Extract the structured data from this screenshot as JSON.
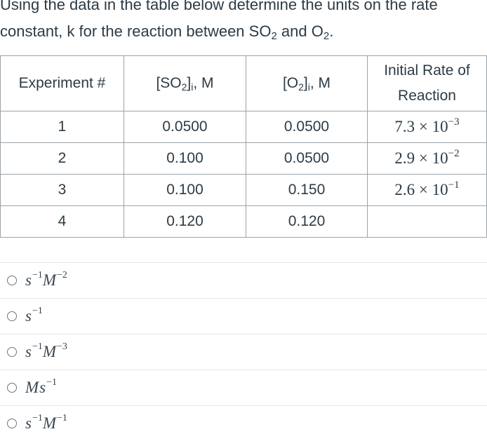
{
  "question": {
    "line1": "Using the data in the table below determine the units on the rate",
    "line2_pre": "constant, k for the reaction between SO",
    "line2_sub1": "2",
    "line2_mid": " and O",
    "line2_sub2": "2",
    "line2_end": "."
  },
  "table": {
    "headers": {
      "experiment": "Experiment #",
      "so2_pre": "[SO",
      "so2_sub": "2",
      "so2_post": "]",
      "so2_i": "i",
      "so2_unit": ", M",
      "o2_pre": "[O",
      "o2_sub": "2",
      "o2_post": "]",
      "o2_i": "i",
      "o2_unit": ", M",
      "rate_line1": "Initial Rate of",
      "rate_line2": "Reaction"
    },
    "rows": [
      {
        "exp": "1",
        "so2": "0.0500",
        "o2": "0.0500",
        "rate_mant": "7.3 × 10",
        "rate_exp": "−3"
      },
      {
        "exp": "2",
        "so2": "0.100",
        "o2": "0.0500",
        "rate_mant": "2.9 × 10",
        "rate_exp": "−2"
      },
      {
        "exp": "3",
        "so2": "0.100",
        "o2": "0.150",
        "rate_mant": "2.6 × 10",
        "rate_exp": "−1"
      },
      {
        "exp": "4",
        "so2": "0.120",
        "o2": "0.120",
        "rate_mant": "",
        "rate_exp": ""
      }
    ]
  },
  "answers": [
    {
      "parts": [
        {
          "b": "s",
          "e": "−1"
        },
        {
          "b": "M",
          "e": "−2"
        }
      ]
    },
    {
      "parts": [
        {
          "b": "s",
          "e": "−1"
        }
      ]
    },
    {
      "parts": [
        {
          "b": "s",
          "e": "−1"
        },
        {
          "b": "M",
          "e": "−3"
        }
      ]
    },
    {
      "parts": [
        {
          "b": "M",
          "e": ""
        },
        {
          "b": "s",
          "e": "−1"
        }
      ]
    },
    {
      "parts": [
        {
          "b": "s",
          "e": "−1"
        },
        {
          "b": "M",
          "e": "−1"
        }
      ]
    }
  ]
}
